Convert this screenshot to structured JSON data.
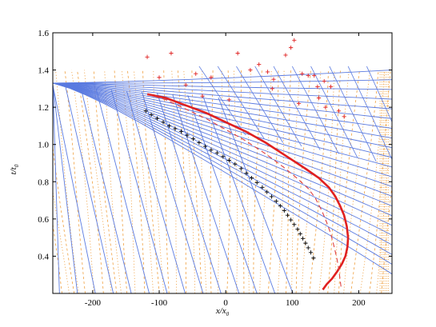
{
  "chart_data": {
    "type": "line",
    "title": "",
    "xlabel": "x/x",
    "xlabel_sub": "0",
    "ylabel": "t/t",
    "ylabel_sub": "0",
    "xlim": [
      -260,
      250
    ],
    "ylim": [
      0.2,
      1.6
    ],
    "xticks": [
      -200,
      -100,
      0,
      100,
      200
    ],
    "xtick_labels": [
      "-200",
      "-100",
      "0",
      "100",
      "200"
    ],
    "yticks": [
      0.4,
      0.6,
      0.8,
      1.0,
      1.2,
      1.4,
      1.6
    ],
    "ytick_labels": [
      "0.4",
      "0.6",
      "0.8",
      "1.0",
      "1.2",
      "1.4",
      "1.6"
    ],
    "grid": false,
    "colors": {
      "contour": "#5b7be0",
      "field": "#f0a040",
      "thick": "#e02020",
      "dashed": "#e04040",
      "black_markers": "#000000",
      "red_markers": "#e02020"
    },
    "series": [
      {
        "style": "thick-solid-red",
        "x": [
          -118,
          -90,
          -60,
          -30,
          0,
          30,
          60,
          90,
          120,
          140,
          155,
          165,
          172,
          178,
          182,
          184,
          183,
          180,
          175,
          168,
          160,
          152,
          146
        ],
        "y": [
          1.27,
          1.25,
          1.21,
          1.17,
          1.12,
          1.07,
          1.01,
          0.94,
          0.87,
          0.82,
          0.77,
          0.72,
          0.67,
          0.62,
          0.56,
          0.5,
          0.45,
          0.4,
          0.36,
          0.32,
          0.28,
          0.25,
          0.22
        ]
      },
      {
        "style": "thin-dashed-red",
        "x": [
          -118,
          -90,
          -60,
          -30,
          0,
          30,
          60,
          90,
          110,
          125,
          135,
          145,
          152,
          158,
          163,
          167,
          170,
          172,
          174
        ],
        "y": [
          1.27,
          1.24,
          1.19,
          1.14,
          1.08,
          1.02,
          0.95,
          0.87,
          0.81,
          0.76,
          0.71,
          0.64,
          0.58,
          0.52,
          0.45,
          0.39,
          0.33,
          0.27,
          0.22
        ]
      },
      {
        "style": "black-plus-markers",
        "x": [
          -120,
          -112,
          -103,
          -94,
          -85,
          -76,
          -67,
          -58,
          -49,
          -40,
          -31,
          -22,
          -13,
          -4,
          5,
          14,
          23,
          31,
          39,
          47,
          55,
          62,
          69,
          76,
          82,
          88,
          93,
          98,
          103,
          108,
          112,
          116,
          120,
          124,
          128,
          132
        ],
        "y": [
          1.18,
          1.16,
          1.14,
          1.12,
          1.1,
          1.085,
          1.07,
          1.05,
          1.03,
          1.01,
          0.99,
          0.97,
          0.955,
          0.935,
          0.915,
          0.895,
          0.87,
          0.845,
          0.82,
          0.795,
          0.77,
          0.745,
          0.72,
          0.695,
          0.67,
          0.645,
          0.62,
          0.595,
          0.57,
          0.545,
          0.52,
          0.495,
          0.47,
          0.445,
          0.42,
          0.39
        ]
      },
      {
        "style": "red-plus-markers",
        "x": [
          -118,
          -82,
          -100,
          -45,
          -22,
          18,
          37,
          50,
          63,
          72,
          90,
          98,
          103,
          115,
          124,
          133,
          138,
          140,
          148,
          150,
          158,
          170,
          178,
          -60,
          -35,
          5,
          70,
          110
        ],
        "y": [
          1.47,
          1.49,
          1.36,
          1.38,
          1.36,
          1.49,
          1.4,
          1.43,
          1.39,
          1.35,
          1.48,
          1.52,
          1.56,
          1.38,
          1.37,
          1.37,
          1.31,
          1.25,
          1.34,
          1.2,
          1.31,
          1.18,
          1.15,
          1.32,
          1.26,
          1.24,
          1.3,
          1.22
        ]
      }
    ]
  }
}
